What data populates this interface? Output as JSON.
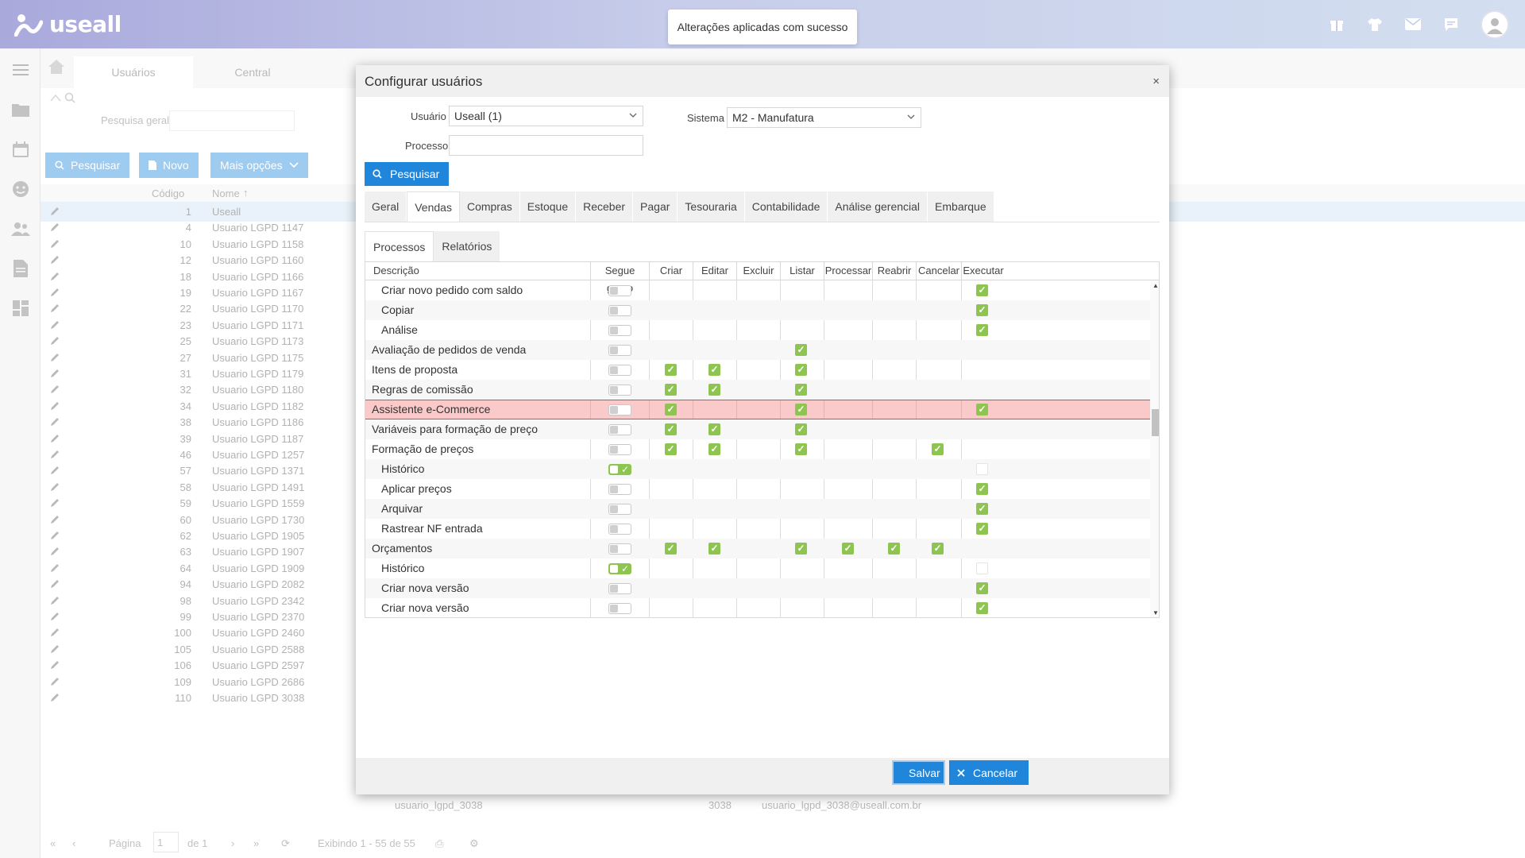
{
  "app": {
    "logo_text": "useall"
  },
  "toast": "Alterações aplicadas com sucesso",
  "background": {
    "tabs": [
      "Usuários",
      "Central"
    ],
    "search_label": "Pesquisa geral",
    "buttons": {
      "search": "Pesquisar",
      "new": "Novo",
      "more": "Mais opções"
    },
    "grid_headers": {
      "code": "Código",
      "name": "Nome"
    },
    "rows": [
      {
        "code": "1",
        "name": "Useall"
      },
      {
        "code": "4",
        "name": "Usuario LGPD 1147"
      },
      {
        "code": "10",
        "name": "Usuario LGPD 1158"
      },
      {
        "code": "12",
        "name": "Usuario LGPD 1160"
      },
      {
        "code": "18",
        "name": "Usuario LGPD 1166"
      },
      {
        "code": "19",
        "name": "Usuario LGPD 1167"
      },
      {
        "code": "22",
        "name": "Usuario LGPD 1170"
      },
      {
        "code": "23",
        "name": "Usuario LGPD 1171"
      },
      {
        "code": "25",
        "name": "Usuario LGPD 1173"
      },
      {
        "code": "27",
        "name": "Usuario LGPD 1175"
      },
      {
        "code": "31",
        "name": "Usuario LGPD 1179"
      },
      {
        "code": "32",
        "name": "Usuario LGPD 1180"
      },
      {
        "code": "34",
        "name": "Usuario LGPD 1182"
      },
      {
        "code": "38",
        "name": "Usuario LGPD 1186"
      },
      {
        "code": "39",
        "name": "Usuario LGPD 1187"
      },
      {
        "code": "46",
        "name": "Usuario LGPD 1257"
      },
      {
        "code": "57",
        "name": "Usuario LGPD 1371"
      },
      {
        "code": "58",
        "name": "Usuario LGPD 1491"
      },
      {
        "code": "59",
        "name": "Usuario LGPD 1559"
      },
      {
        "code": "60",
        "name": "Usuario LGPD 1730"
      },
      {
        "code": "62",
        "name": "Usuario LGPD 1905"
      },
      {
        "code": "63",
        "name": "Usuario LGPD 1907"
      },
      {
        "code": "64",
        "name": "Usuario LGPD 1909"
      },
      {
        "code": "94",
        "name": "Usuario LGPD 2082"
      },
      {
        "code": "98",
        "name": "Usuario LGPD 2342"
      },
      {
        "code": "99",
        "name": "Usuario LGPD 2370"
      },
      {
        "code": "100",
        "name": "Usuario LGPD 2460"
      },
      {
        "code": "105",
        "name": "Usuario LGPD 2588"
      },
      {
        "code": "106",
        "name": "Usuario LGPD 2597"
      },
      {
        "code": "109",
        "name": "Usuario LGPD 2686"
      },
      {
        "code": "110",
        "name": "Usuario LGPD 3038"
      }
    ],
    "row_ext": {
      "login": "usuario_lgpd_3038",
      "code": "3038",
      "email": "usuario_lgpd_3038@useall.com.br"
    },
    "pager": {
      "page_label": "Página",
      "page_value": "1",
      "of_label": "de 1",
      "display": "Exibindo 1 - 55 de 55"
    }
  },
  "modal": {
    "title": "Configurar usuários",
    "close": "×",
    "user_label": "Usuário",
    "user_value": "Useall  (1)",
    "system_label": "Sistema",
    "system_value": "M2 - Manufatura",
    "process_label": "Processo",
    "search_button": "Pesquisar",
    "tabs": [
      "Geral",
      "Vendas",
      "Compras",
      "Estoque",
      "Receber",
      "Pagar",
      "Tesouraria",
      "Contabilidade",
      "Análise gerencial",
      "Embarque"
    ],
    "subtabs": [
      "Processos",
      "Relatórios"
    ],
    "columns": [
      "Descrição",
      "Segue grupo",
      "Criar",
      "Editar",
      "Excluir",
      "Listar",
      "Processar",
      "Reabrir",
      "Cancelar",
      "Executar"
    ],
    "rows": [
      {
        "desc": "Criar novo pedido com saldo",
        "indent": true,
        "toggle": false,
        "criar": false,
        "editar": false,
        "listar": false,
        "processar": false,
        "reabrir": false,
        "cancelar": false,
        "executar": "on"
      },
      {
        "desc": "Copiar",
        "indent": true,
        "toggle": false,
        "criar": false,
        "editar": false,
        "listar": false,
        "processar": false,
        "reabrir": false,
        "cancelar": false,
        "executar": "on"
      },
      {
        "desc": "Análise",
        "indent": true,
        "toggle": false,
        "criar": false,
        "editar": false,
        "listar": false,
        "processar": false,
        "reabrir": false,
        "cancelar": false,
        "executar": "on"
      },
      {
        "desc": "Avaliação de pedidos de venda",
        "indent": false,
        "toggle": false,
        "criar": false,
        "editar": false,
        "listar": true,
        "processar": false,
        "reabrir": false,
        "cancelar": false,
        "executar": "none"
      },
      {
        "desc": "Itens de proposta",
        "indent": false,
        "toggle": false,
        "criar": true,
        "editar": true,
        "listar": true,
        "processar": false,
        "reabrir": false,
        "cancelar": false,
        "executar": "none"
      },
      {
        "desc": "Regras de comissão",
        "indent": false,
        "toggle": false,
        "criar": true,
        "editar": true,
        "listar": true,
        "processar": false,
        "reabrir": false,
        "cancelar": false,
        "executar": "none"
      },
      {
        "desc": "Assistente e-Commerce",
        "indent": false,
        "toggle": false,
        "criar": true,
        "editar": false,
        "listar": true,
        "processar": false,
        "reabrir": false,
        "cancelar": false,
        "executar": "on",
        "highlight": true
      },
      {
        "desc": "Variáveis para formação de preço",
        "indent": false,
        "toggle": false,
        "criar": true,
        "editar": true,
        "listar": true,
        "processar": false,
        "reabrir": false,
        "cancelar": false,
        "executar": "none"
      },
      {
        "desc": "Formação de preços",
        "indent": false,
        "toggle": false,
        "criar": true,
        "editar": true,
        "listar": true,
        "processar": false,
        "reabrir": false,
        "cancelar": true,
        "executar": "none"
      },
      {
        "desc": "Histórico",
        "indent": true,
        "toggle": true,
        "criar": false,
        "editar": false,
        "listar": false,
        "processar": false,
        "reabrir": false,
        "cancelar": false,
        "executar": "off"
      },
      {
        "desc": "Aplicar preços",
        "indent": true,
        "toggle": false,
        "criar": false,
        "editar": false,
        "listar": false,
        "processar": false,
        "reabrir": false,
        "cancelar": false,
        "executar": "on"
      },
      {
        "desc": "Arquivar",
        "indent": true,
        "toggle": false,
        "criar": false,
        "editar": false,
        "listar": false,
        "processar": false,
        "reabrir": false,
        "cancelar": false,
        "executar": "on"
      },
      {
        "desc": "Rastrear NF entrada",
        "indent": true,
        "toggle": false,
        "criar": false,
        "editar": false,
        "listar": false,
        "processar": false,
        "reabrir": false,
        "cancelar": false,
        "executar": "on"
      },
      {
        "desc": "Orçamentos",
        "indent": false,
        "toggle": false,
        "criar": true,
        "editar": true,
        "listar": true,
        "processar": true,
        "reabrir": true,
        "cancelar": true,
        "executar": "none"
      },
      {
        "desc": "Histórico",
        "indent": true,
        "toggle": true,
        "criar": false,
        "editar": false,
        "listar": false,
        "processar": false,
        "reabrir": false,
        "cancelar": false,
        "executar": "off"
      },
      {
        "desc": "Criar nova versão",
        "indent": true,
        "toggle": false,
        "criar": false,
        "editar": false,
        "listar": false,
        "processar": false,
        "reabrir": false,
        "cancelar": false,
        "executar": "on"
      },
      {
        "desc": "Criar nova versão",
        "indent": true,
        "toggle": false,
        "criar": false,
        "editar": false,
        "listar": false,
        "processar": false,
        "reabrir": false,
        "cancelar": false,
        "executar": "on"
      }
    ],
    "save_button": "Salvar",
    "cancel_button": "Cancelar"
  },
  "colors": {
    "primary": "#1f86dc",
    "check": "#8ec450",
    "highlight": "#e04848"
  }
}
